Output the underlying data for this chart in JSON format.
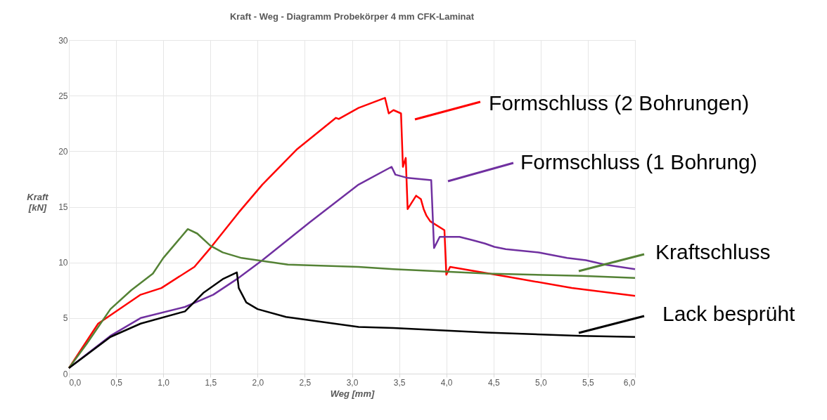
{
  "chart_data": {
    "type": "line",
    "title": "Kraft - Weg - Diagramm Probekörper 4 mm CFK-Laminat",
    "xlabel": "Weg [mm]",
    "ylabel": "Kraft [kN]",
    "xlim": [
      0,
      6
    ],
    "ylim": [
      0,
      30
    ],
    "xticks": [
      {
        "value": 0,
        "label": "0,0"
      },
      {
        "value": 0.5,
        "label": "0,5"
      },
      {
        "value": 1,
        "label": "1,0"
      },
      {
        "value": 1.5,
        "label": "1,5"
      },
      {
        "value": 2,
        "label": "2,0"
      },
      {
        "value": 2.5,
        "label": "2,5"
      },
      {
        "value": 3,
        "label": "3,0"
      },
      {
        "value": 3.5,
        "label": "3,5"
      },
      {
        "value": 4,
        "label": "4,0"
      },
      {
        "value": 4.5,
        "label": "4,5"
      },
      {
        "value": 5,
        "label": "5,0"
      },
      {
        "value": 5.5,
        "label": "5,5"
      },
      {
        "value": 6,
        "label": "6,0"
      }
    ],
    "yticks": [
      0,
      5,
      10,
      15,
      20,
      25,
      30
    ],
    "grid": true,
    "legend": "right",
    "series": [
      {
        "name": "Formschluss (2 Bohrungen)",
        "color": "#ff0000",
        "x": [
          0,
          0.31,
          0.76,
          0.98,
          1.33,
          1.5,
          1.8,
          2.05,
          2.42,
          2.83,
          2.86,
          3.07,
          3.35,
          3.39,
          3.44,
          3.52,
          3.54,
          3.57,
          3.59,
          3.68,
          3.73,
          3.76,
          3.79,
          3.83,
          3.98,
          4.0,
          4.04,
          4.66,
          5.33,
          6.0
        ],
        "values": [
          0.5,
          4.5,
          7.1,
          7.7,
          9.6,
          11.3,
          14.5,
          17.0,
          20.2,
          23.0,
          22.9,
          23.9,
          24.8,
          23.4,
          23.7,
          23.4,
          18.6,
          19.4,
          14.8,
          16.0,
          15.7,
          14.8,
          14.2,
          13.7,
          12.9,
          8.9,
          9.6,
          8.7,
          7.7,
          7.0
        ]
      },
      {
        "name": "Formschluss (1 Bohrung)",
        "color": "#7030a0",
        "x": [
          0,
          0.44,
          0.76,
          1.23,
          1.53,
          1.78,
          2.05,
          2.55,
          3.07,
          3.42,
          3.46,
          3.59,
          3.84,
          3.87,
          3.93,
          4.14,
          4.28,
          4.41,
          4.51,
          4.63,
          4.98,
          5.28,
          5.48,
          5.68,
          6.0
        ],
        "values": [
          0.5,
          3.4,
          5.0,
          6.0,
          7.1,
          8.5,
          10.2,
          13.6,
          17.0,
          18.6,
          17.9,
          17.6,
          17.4,
          11.3,
          12.3,
          12.3,
          12.0,
          11.7,
          11.4,
          11.2,
          10.9,
          10.4,
          10.2,
          9.8,
          9.4
        ]
      },
      {
        "name": "Kraftschluss",
        "color": "#548235",
        "x": [
          0,
          0.19,
          0.44,
          0.66,
          0.89,
          1.0,
          1.26,
          1.36,
          1.5,
          1.63,
          1.83,
          2.32,
          3.07,
          3.44,
          4.43,
          5.43,
          6.0
        ],
        "values": [
          0.5,
          2.7,
          5.8,
          7.5,
          9.0,
          10.4,
          13.0,
          12.6,
          11.5,
          10.9,
          10.4,
          9.8,
          9.6,
          9.4,
          9.0,
          8.8,
          8.6
        ]
      },
      {
        "name": "Lack besprüht",
        "color": "#000000",
        "x": [
          0,
          0.44,
          0.76,
          1.23,
          1.43,
          1.63,
          1.78,
          1.8,
          1.88,
          2.0,
          2.3,
          3.07,
          3.44,
          4.43,
          5.43,
          6.0
        ],
        "values": [
          0.5,
          3.3,
          4.5,
          5.6,
          7.3,
          8.5,
          9.1,
          7.7,
          6.4,
          5.8,
          5.1,
          4.2,
          4.1,
          3.7,
          3.4,
          3.3
        ]
      }
    ]
  }
}
